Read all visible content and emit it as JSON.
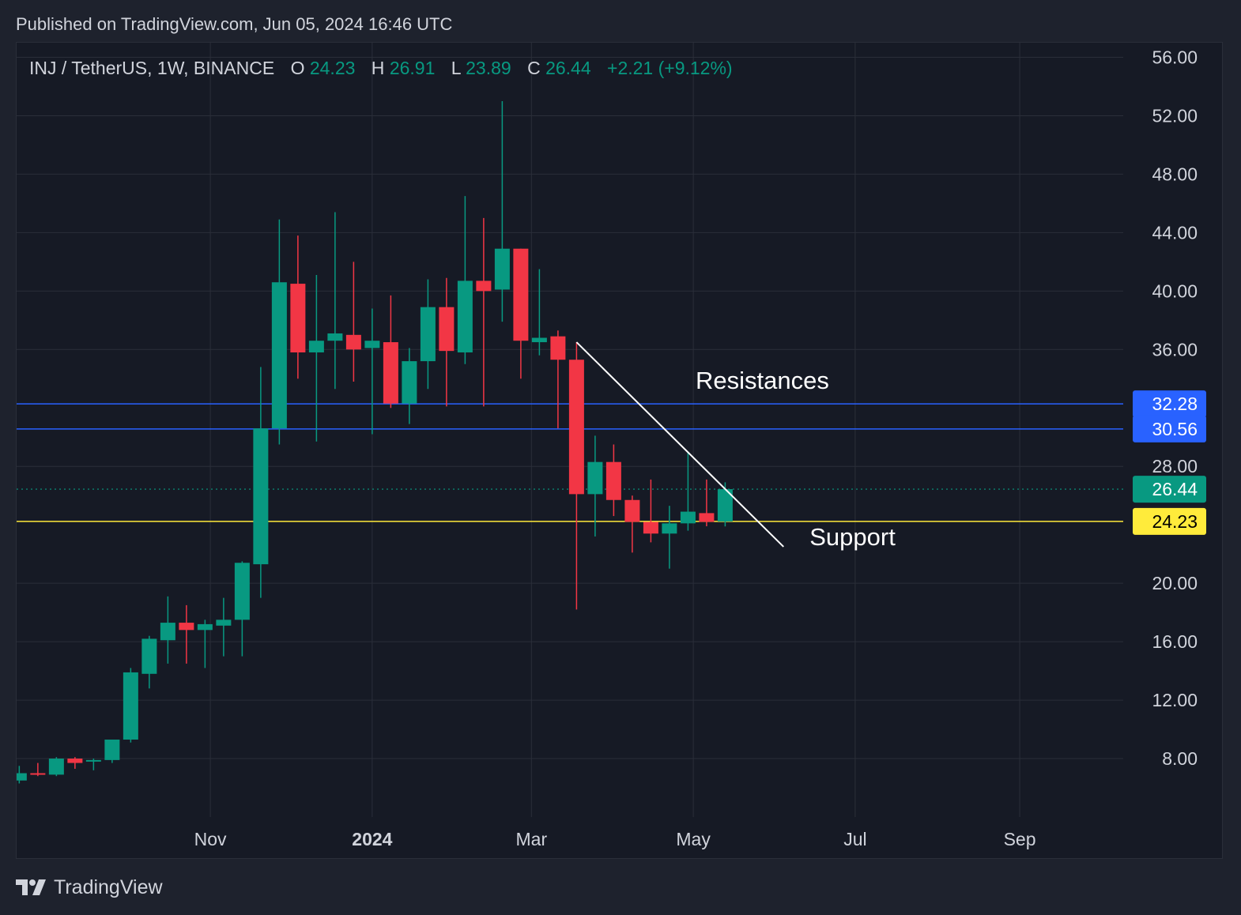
{
  "header": {
    "published": "Published on TradingView.com, Jun 05, 2024 16:46 UTC"
  },
  "footer": {
    "brand": "TradingView",
    "logo_icon": "tradingview-logo-icon"
  },
  "colors": {
    "background": "#1e222d",
    "up": "#089981",
    "down": "#f23645",
    "resistance": "#2962ff",
    "support": "#ffeb3b",
    "trendline": "#ffffff",
    "grid": "#2a2e39",
    "text": "#d1d4dc"
  },
  "chart_data": {
    "type": "candlestick",
    "symbol_line": {
      "symbol": "INJ / TetherUS, 1W, BINANCE",
      "o_label": "O",
      "o_value": "24.23",
      "h_label": "H",
      "h_value": "26.91",
      "l_label": "L",
      "l_value": "23.89",
      "c_label": "C",
      "c_value": "26.44",
      "change": "+2.21 (+9.12%)"
    },
    "y_ticks": [
      "8.00",
      "12.00",
      "16.00",
      "20.00",
      "28.00",
      "36.00",
      "40.00",
      "44.00",
      "48.00",
      "52.00",
      "56.00"
    ],
    "y_tick_values": [
      8,
      12,
      16,
      20,
      28,
      36,
      40,
      44,
      48,
      52,
      56
    ],
    "y_range": [
      4.0,
      57.0
    ],
    "x_ticks": [
      {
        "label": "Nov",
        "date": "2023-11-01",
        "bold": false
      },
      {
        "label": "2024",
        "date": "2024-01-01",
        "bold": true
      },
      {
        "label": "Mar",
        "date": "2024-03-01",
        "bold": false
      },
      {
        "label": "May",
        "date": "2024-05-01",
        "bold": false
      },
      {
        "label": "Jul",
        "date": "2024-07-01",
        "bold": false
      },
      {
        "label": "Sep",
        "date": "2024-09-01",
        "bold": false
      }
    ],
    "x_range": [
      "2023-08-20",
      "2024-10-10"
    ],
    "candles": [
      {
        "date": "2023-08-21",
        "o": 6.5,
        "h": 7.5,
        "l": 6.3,
        "c": 7.0
      },
      {
        "date": "2023-08-28",
        "o": 7.0,
        "h": 7.7,
        "l": 6.8,
        "c": 6.9
      },
      {
        "date": "2023-09-04",
        "o": 6.9,
        "h": 8.1,
        "l": 6.8,
        "c": 8.0
      },
      {
        "date": "2023-09-11",
        "o": 8.0,
        "h": 8.1,
        "l": 7.3,
        "c": 7.7
      },
      {
        "date": "2023-09-18",
        "o": 7.8,
        "h": 8.0,
        "l": 7.2,
        "c": 7.9
      },
      {
        "date": "2023-09-25",
        "o": 7.9,
        "h": 9.3,
        "l": 7.7,
        "c": 9.3
      },
      {
        "date": "2023-10-02",
        "o": 9.3,
        "h": 14.2,
        "l": 9.1,
        "c": 13.9
      },
      {
        "date": "2023-10-09",
        "o": 13.8,
        "h": 16.4,
        "l": 12.8,
        "c": 16.2
      },
      {
        "date": "2023-10-16",
        "o": 16.1,
        "h": 19.1,
        "l": 14.5,
        "c": 17.3
      },
      {
        "date": "2023-10-23",
        "o": 17.3,
        "h": 18.5,
        "l": 14.5,
        "c": 16.8
      },
      {
        "date": "2023-10-30",
        "o": 16.8,
        "h": 17.5,
        "l": 14.2,
        "c": 17.2
      },
      {
        "date": "2023-11-06",
        "o": 17.1,
        "h": 19.0,
        "l": 15.0,
        "c": 17.5
      },
      {
        "date": "2023-11-13",
        "o": 17.5,
        "h": 21.5,
        "l": 15.0,
        "c": 21.4
      },
      {
        "date": "2023-11-20",
        "o": 21.3,
        "h": 34.8,
        "l": 19.0,
        "c": 30.6
      },
      {
        "date": "2023-11-27",
        "o": 30.6,
        "h": 44.9,
        "l": 29.5,
        "c": 40.6
      },
      {
        "date": "2023-12-04",
        "o": 40.5,
        "h": 43.8,
        "l": 34.0,
        "c": 35.8
      },
      {
        "date": "2023-12-11",
        "o": 35.8,
        "h": 41.1,
        "l": 29.7,
        "c": 36.6
      },
      {
        "date": "2023-12-18",
        "o": 36.6,
        "h": 45.4,
        "l": 33.3,
        "c": 37.1
      },
      {
        "date": "2023-12-25",
        "o": 37.0,
        "h": 42.0,
        "l": 33.8,
        "c": 36.0
      },
      {
        "date": "2024-01-01",
        "o": 36.1,
        "h": 38.8,
        "l": 30.2,
        "c": 36.6
      },
      {
        "date": "2024-01-08",
        "o": 36.5,
        "h": 39.7,
        "l": 32.0,
        "c": 32.3
      },
      {
        "date": "2024-01-15",
        "o": 32.3,
        "h": 36.1,
        "l": 30.9,
        "c": 35.2
      },
      {
        "date": "2024-01-22",
        "o": 35.2,
        "h": 40.8,
        "l": 33.3,
        "c": 38.9
      },
      {
        "date": "2024-01-29",
        "o": 38.9,
        "h": 40.9,
        "l": 32.1,
        "c": 35.9
      },
      {
        "date": "2024-02-05",
        "o": 35.8,
        "h": 46.5,
        "l": 35.0,
        "c": 40.7
      },
      {
        "date": "2024-02-12",
        "o": 40.7,
        "h": 45.0,
        "l": 32.1,
        "c": 40.0
      },
      {
        "date": "2024-02-19",
        "o": 40.1,
        "h": 53.0,
        "l": 37.9,
        "c": 42.9
      },
      {
        "date": "2024-02-26",
        "o": 42.9,
        "h": 42.9,
        "l": 34.0,
        "c": 36.6
      },
      {
        "date": "2024-03-04",
        "o": 36.5,
        "h": 41.5,
        "l": 35.6,
        "c": 36.8
      },
      {
        "date": "2024-03-11",
        "o": 36.9,
        "h": 37.3,
        "l": 30.6,
        "c": 35.3
      },
      {
        "date": "2024-03-18",
        "o": 35.3,
        "h": 36.5,
        "l": 18.2,
        "c": 26.1
      },
      {
        "date": "2024-03-25",
        "o": 26.1,
        "h": 30.1,
        "l": 23.2,
        "c": 28.3
      },
      {
        "date": "2024-04-01",
        "o": 28.3,
        "h": 29.5,
        "l": 24.6,
        "c": 25.7
      },
      {
        "date": "2024-04-08",
        "o": 25.7,
        "h": 26.0,
        "l": 22.1,
        "c": 24.2
      },
      {
        "date": "2024-04-15",
        "o": 24.2,
        "h": 27.1,
        "l": 22.8,
        "c": 23.4
      },
      {
        "date": "2024-04-22",
        "o": 23.4,
        "h": 25.3,
        "l": 21.0,
        "c": 24.1
      },
      {
        "date": "2024-04-29",
        "o": 24.1,
        "h": 29.0,
        "l": 23.6,
        "c": 24.9
      },
      {
        "date": "2024-05-06",
        "o": 24.8,
        "h": 27.1,
        "l": 23.9,
        "c": 24.2
      },
      {
        "date": "2024-05-13",
        "o": 24.23,
        "h": 26.91,
        "l": 23.89,
        "c": 26.44
      }
    ],
    "horizontal_lines": [
      {
        "name": "resistance-1",
        "value": 32.28,
        "label": "32.28",
        "color": "#2962ff",
        "style": "solid"
      },
      {
        "name": "resistance-2",
        "value": 30.56,
        "label": "30.56",
        "color": "#2962ff",
        "style": "solid"
      },
      {
        "name": "support",
        "value": 24.23,
        "label": "24.23",
        "color": "#ffeb3b",
        "style": "solid"
      },
      {
        "name": "last-price",
        "value": 26.44,
        "label": "26.44",
        "color": "#089981",
        "style": "dotted"
      }
    ],
    "trendline": {
      "from": {
        "date": "2024-03-18",
        "value": 36.5
      },
      "to": {
        "date": "2024-06-04",
        "value": 22.5
      }
    },
    "annotations": [
      {
        "name": "resistances",
        "text": "Resistances",
        "date": "2024-05-27",
        "value": 33.3
      },
      {
        "name": "support",
        "text": "Support",
        "date": "2024-06-30",
        "value": 22.6
      }
    ]
  }
}
